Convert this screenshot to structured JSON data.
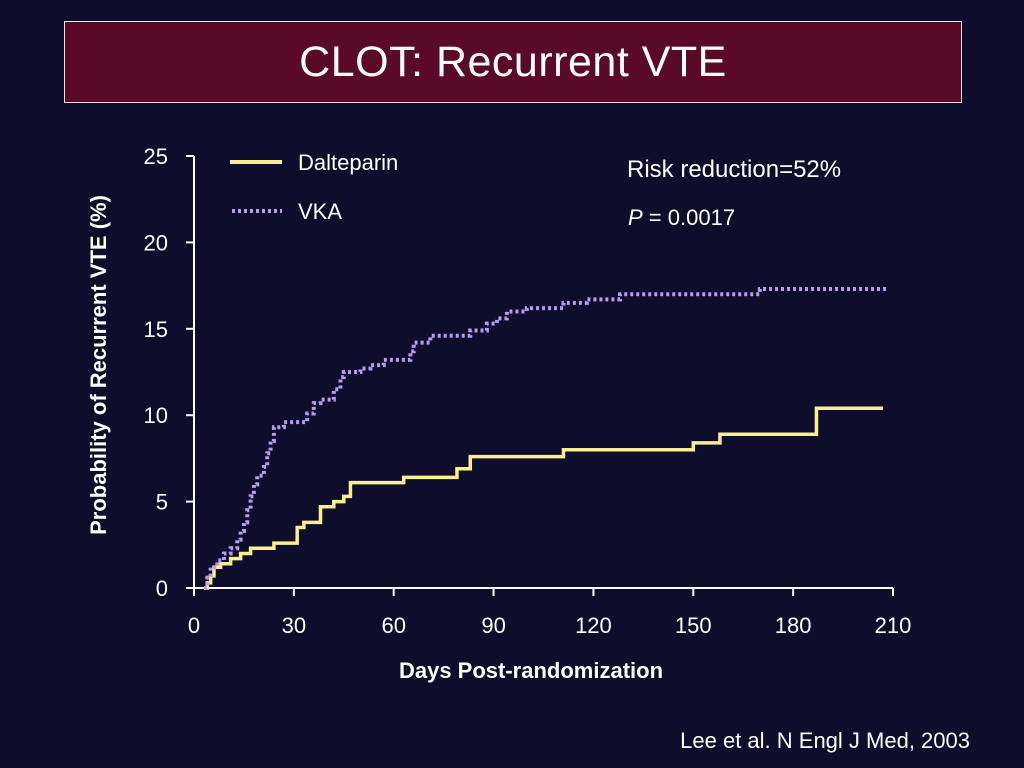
{
  "slide": {
    "title": "CLOT: Recurrent VTE",
    "citation": "Lee et al. N Engl J Med, 2003",
    "background_color": "#0f0d2c",
    "title_bar_color": "#5a0a26"
  },
  "chart_data": {
    "type": "line",
    "title": "",
    "xlabel": "Days Post-randomization",
    "ylabel": "Probability of Recurrent VTE (%)",
    "xlim": [
      0,
      210
    ],
    "ylim": [
      0,
      25
    ],
    "xticks": [
      0,
      30,
      60,
      90,
      120,
      150,
      180,
      210
    ],
    "yticks": [
      0,
      5,
      10,
      15,
      20,
      25
    ],
    "grid": false,
    "legend_position": "top-left",
    "annotations": {
      "risk_text": "Risk reduction=52%",
      "p_label": "P",
      "p_value": " = 0.0017"
    },
    "series": [
      {
        "name": "Dalteparin",
        "color": "#f7f08c",
        "style": "solid",
        "step": true,
        "points": [
          [
            3,
            0
          ],
          [
            4,
            0.3
          ],
          [
            5,
            0.7
          ],
          [
            6,
            1.2
          ],
          [
            8,
            1.4
          ],
          [
            11,
            1.7
          ],
          [
            14,
            2.0
          ],
          [
            17,
            2.3
          ],
          [
            24,
            2.6
          ],
          [
            31,
            3.5
          ],
          [
            33,
            3.8
          ],
          [
            38,
            4.7
          ],
          [
            42,
            5.0
          ],
          [
            45,
            5.3
          ],
          [
            47,
            6.1
          ],
          [
            63,
            6.4
          ],
          [
            79,
            6.9
          ],
          [
            83,
            7.6
          ],
          [
            111,
            8.0
          ],
          [
            150,
            8.4
          ],
          [
            158,
            8.9
          ],
          [
            187,
            10.4
          ],
          [
            207,
            10.4
          ]
        ]
      },
      {
        "name": "VKA",
        "color": "#b99bf0",
        "style": "dotted",
        "step": true,
        "points": [
          [
            3,
            0
          ],
          [
            4,
            0.6
          ],
          [
            5,
            1.2
          ],
          [
            7,
            1.6
          ],
          [
            9,
            2.0
          ],
          [
            11,
            2.3
          ],
          [
            13,
            2.8
          ],
          [
            14,
            3.3
          ],
          [
            15,
            3.8
          ],
          [
            16,
            4.5
          ],
          [
            17,
            5.3
          ],
          [
            18,
            6.0
          ],
          [
            19,
            6.5
          ],
          [
            21,
            7.0
          ],
          [
            22,
            7.8
          ],
          [
            23,
            8.5
          ],
          [
            24,
            9.3
          ],
          [
            27,
            9.6
          ],
          [
            34,
            10.1
          ],
          [
            36,
            10.7
          ],
          [
            38,
            10.9
          ],
          [
            42,
            11.5
          ],
          [
            44,
            12.2
          ],
          [
            45,
            12.5
          ],
          [
            50,
            12.7
          ],
          [
            53,
            12.9
          ],
          [
            57,
            13.2
          ],
          [
            65,
            13.7
          ],
          [
            66,
            14.2
          ],
          [
            71,
            14.6
          ],
          [
            83,
            14.9
          ],
          [
            88,
            15.3
          ],
          [
            91,
            15.6
          ],
          [
            94,
            16.0
          ],
          [
            100,
            16.2
          ],
          [
            111,
            16.5
          ],
          [
            118,
            16.7
          ],
          [
            128,
            17.0
          ],
          [
            170,
            17.3
          ],
          [
            208,
            17.3
          ]
        ]
      }
    ]
  }
}
